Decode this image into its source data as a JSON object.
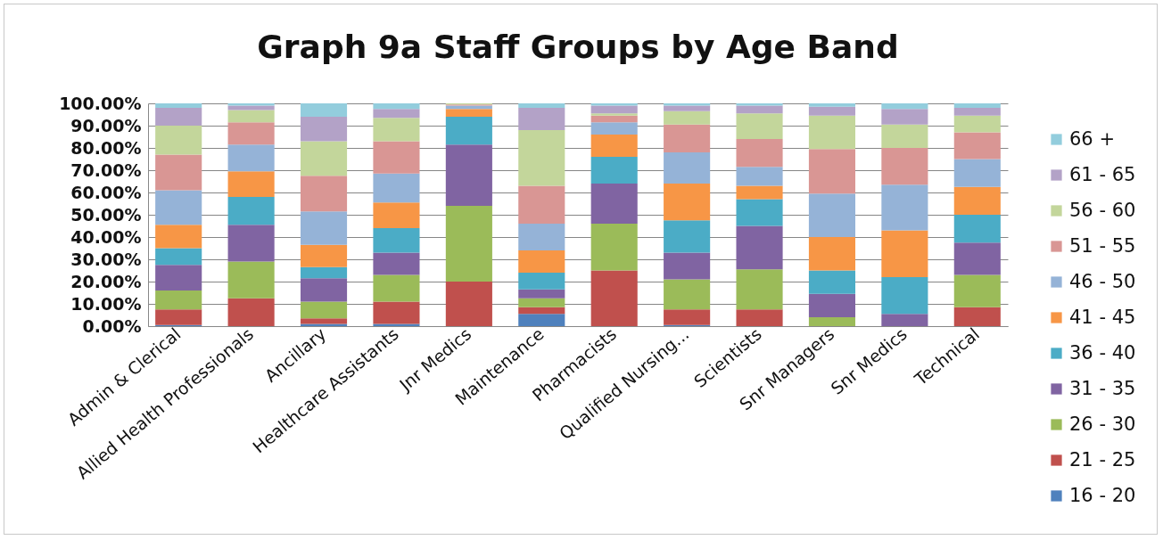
{
  "chart_data": {
    "type": "bar",
    "title": "Graph 9a Staff Groups by Age Band",
    "stacked": true,
    "grid": "y",
    "legend": "right",
    "categories": [
      "Admin & Clerical",
      "Allied Health Professionals",
      "Ancillary",
      "Healthcare Assistants",
      "Jnr Medics",
      "Maintenance",
      "Pharmacists",
      "Qualified Nursing...",
      "Scientists",
      "Snr Managers",
      "Snr Medics",
      "Technical"
    ],
    "ylim": [
      0,
      100
    ],
    "yticks": [
      {
        "value": 0,
        "label": "0.00%"
      },
      {
        "value": 10,
        "label": "10.00%"
      },
      {
        "value": 20,
        "label": "20.00%"
      },
      {
        "value": 30,
        "label": "30.00%"
      },
      {
        "value": 40,
        "label": "40.00%"
      },
      {
        "value": 50,
        "label": "50.00%"
      },
      {
        "value": 60,
        "label": "60.00%"
      },
      {
        "value": 70,
        "label": "70.00%"
      },
      {
        "value": 80,
        "label": "80.00%"
      },
      {
        "value": 90,
        "label": "90.00%"
      },
      {
        "value": 100,
        "label": "100.00%"
      }
    ],
    "series": [
      {
        "name": "16 - 20",
        "color": "#4f81bd",
        "values": [
          0.5,
          0,
          1,
          1,
          0,
          5.5,
          0,
          0.5,
          0,
          0,
          0,
          0
        ]
      },
      {
        "name": "21 - 25",
        "color": "#c0504d",
        "values": [
          7,
          12.5,
          2.5,
          10,
          20,
          3,
          25,
          7,
          7.5,
          0,
          0,
          8.5
        ]
      },
      {
        "name": "26 - 30",
        "color": "#9bbb59",
        "values": [
          8.5,
          16.5,
          7.5,
          12,
          34,
          4,
          21,
          13.5,
          18,
          4,
          0,
          14.5
        ]
      },
      {
        "name": "31 - 35",
        "color": "#8064a2",
        "values": [
          11.5,
          16.5,
          10.5,
          10,
          27.5,
          4,
          18,
          12,
          19.5,
          10.5,
          5.5,
          14.5
        ]
      },
      {
        "name": "36 - 40",
        "color": "#4bacc6",
        "values": [
          7.5,
          12.5,
          5,
          11,
          12.5,
          7.5,
          12,
          14.5,
          12,
          10.5,
          16.5,
          12.5
        ]
      },
      {
        "name": "41 - 45",
        "color": "#f79646",
        "values": [
          10.5,
          11.5,
          10,
          11.5,
          3.5,
          10,
          10,
          16.5,
          6,
          15,
          21,
          12.5
        ]
      },
      {
        "name": "46 - 50",
        "color": "#95b3d7",
        "values": [
          15.5,
          12,
          15,
          13,
          1.5,
          12,
          5.5,
          14,
          8.5,
          19.5,
          20.5,
          12.5
        ]
      },
      {
        "name": "51 - 55",
        "color": "#d99694",
        "values": [
          16,
          10,
          16,
          14.5,
          0.5,
          17,
          3,
          12.5,
          12.5,
          20,
          16.5,
          12
        ]
      },
      {
        "name": "56 - 60",
        "color": "#c3d69b",
        "values": [
          13,
          5.5,
          15.5,
          10.5,
          0.5,
          25,
          1,
          6,
          11.5,
          15,
          10.5,
          7.5
        ]
      },
      {
        "name": "61 - 65",
        "color": "#b3a2c7",
        "values": [
          8,
          2,
          11,
          4,
          0,
          10,
          3.5,
          2.5,
          3.5,
          4,
          7,
          3.5
        ]
      },
      {
        "name": "66 +",
        "color": "#93cddd",
        "values": [
          2,
          1,
          6,
          2.5,
          0,
          2,
          1,
          1,
          1,
          1.5,
          2.5,
          2
        ]
      }
    ]
  }
}
